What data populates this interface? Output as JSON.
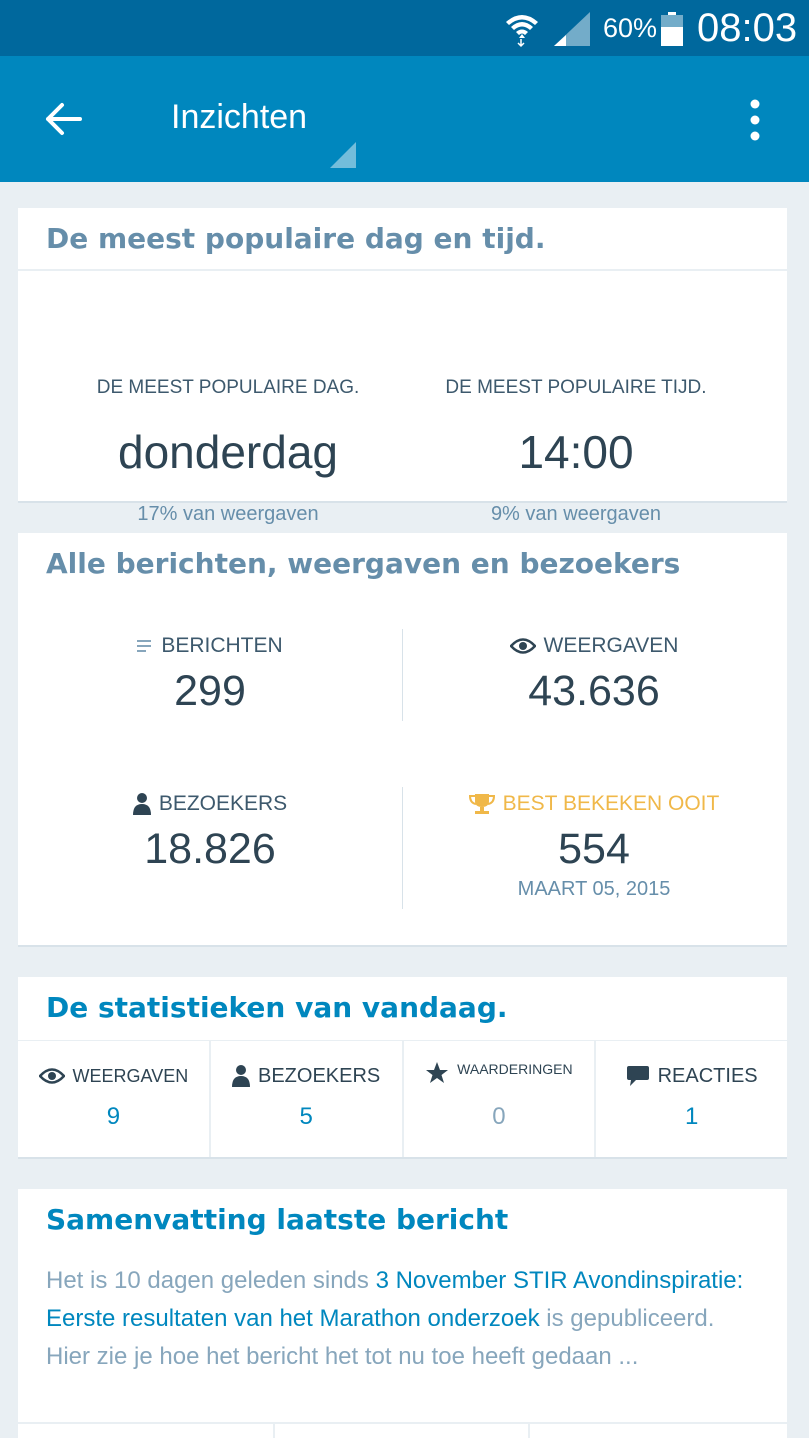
{
  "status_bar": {
    "battery": "60%",
    "time": "08:03"
  },
  "app_bar": {
    "title": "Inzichten"
  },
  "popular": {
    "title": "De meest populaire dag en tijd.",
    "day_label": "DE MEEST POPULAIRE DAG.",
    "day_value": "donderdag",
    "day_sub": "17% van weergaven",
    "time_label": "DE MEEST POPULAIRE TIJD.",
    "time_value": "14:00",
    "time_sub": "9% van weergaven"
  },
  "all_stats": {
    "title": "Alle berichten, weergaven en bezoekers",
    "posts_label": "BERICHTEN",
    "posts_value": "299",
    "views_label": "WEERGAVEN",
    "views_value": "43.636",
    "visitors_label": "BEZOEKERS",
    "visitors_value": "18.826",
    "best_label": "BEST BEKEKEN OOIT",
    "best_value": "554",
    "best_date": "MAART 05, 2015"
  },
  "today": {
    "title": "De statistieken van vandaag.",
    "items": [
      {
        "label": "WEERGAVEN",
        "value": "9"
      },
      {
        "label": "BEZOEKERS",
        "value": "5"
      },
      {
        "label": "WAARDERINGEN",
        "value": "0"
      },
      {
        "label": "REACTIES",
        "value": "1"
      }
    ]
  },
  "latest": {
    "title": "Samenvatting laatste bericht",
    "text_before": "Het is 10 dagen geleden sinds ",
    "link": "3 November STIR Avondinspiratie: Eerste resultaten van het Marathon onderzoek",
    "text_after": " is gepubliceerd. Hier zie je hoe het bericht het tot nu toe heeft gedaan ..."
  },
  "colors": {
    "status_bar": "#00689d",
    "app_bar": "#0087be",
    "accent": "#0087be",
    "gold": "#f0b849",
    "background": "#e9eff3"
  }
}
